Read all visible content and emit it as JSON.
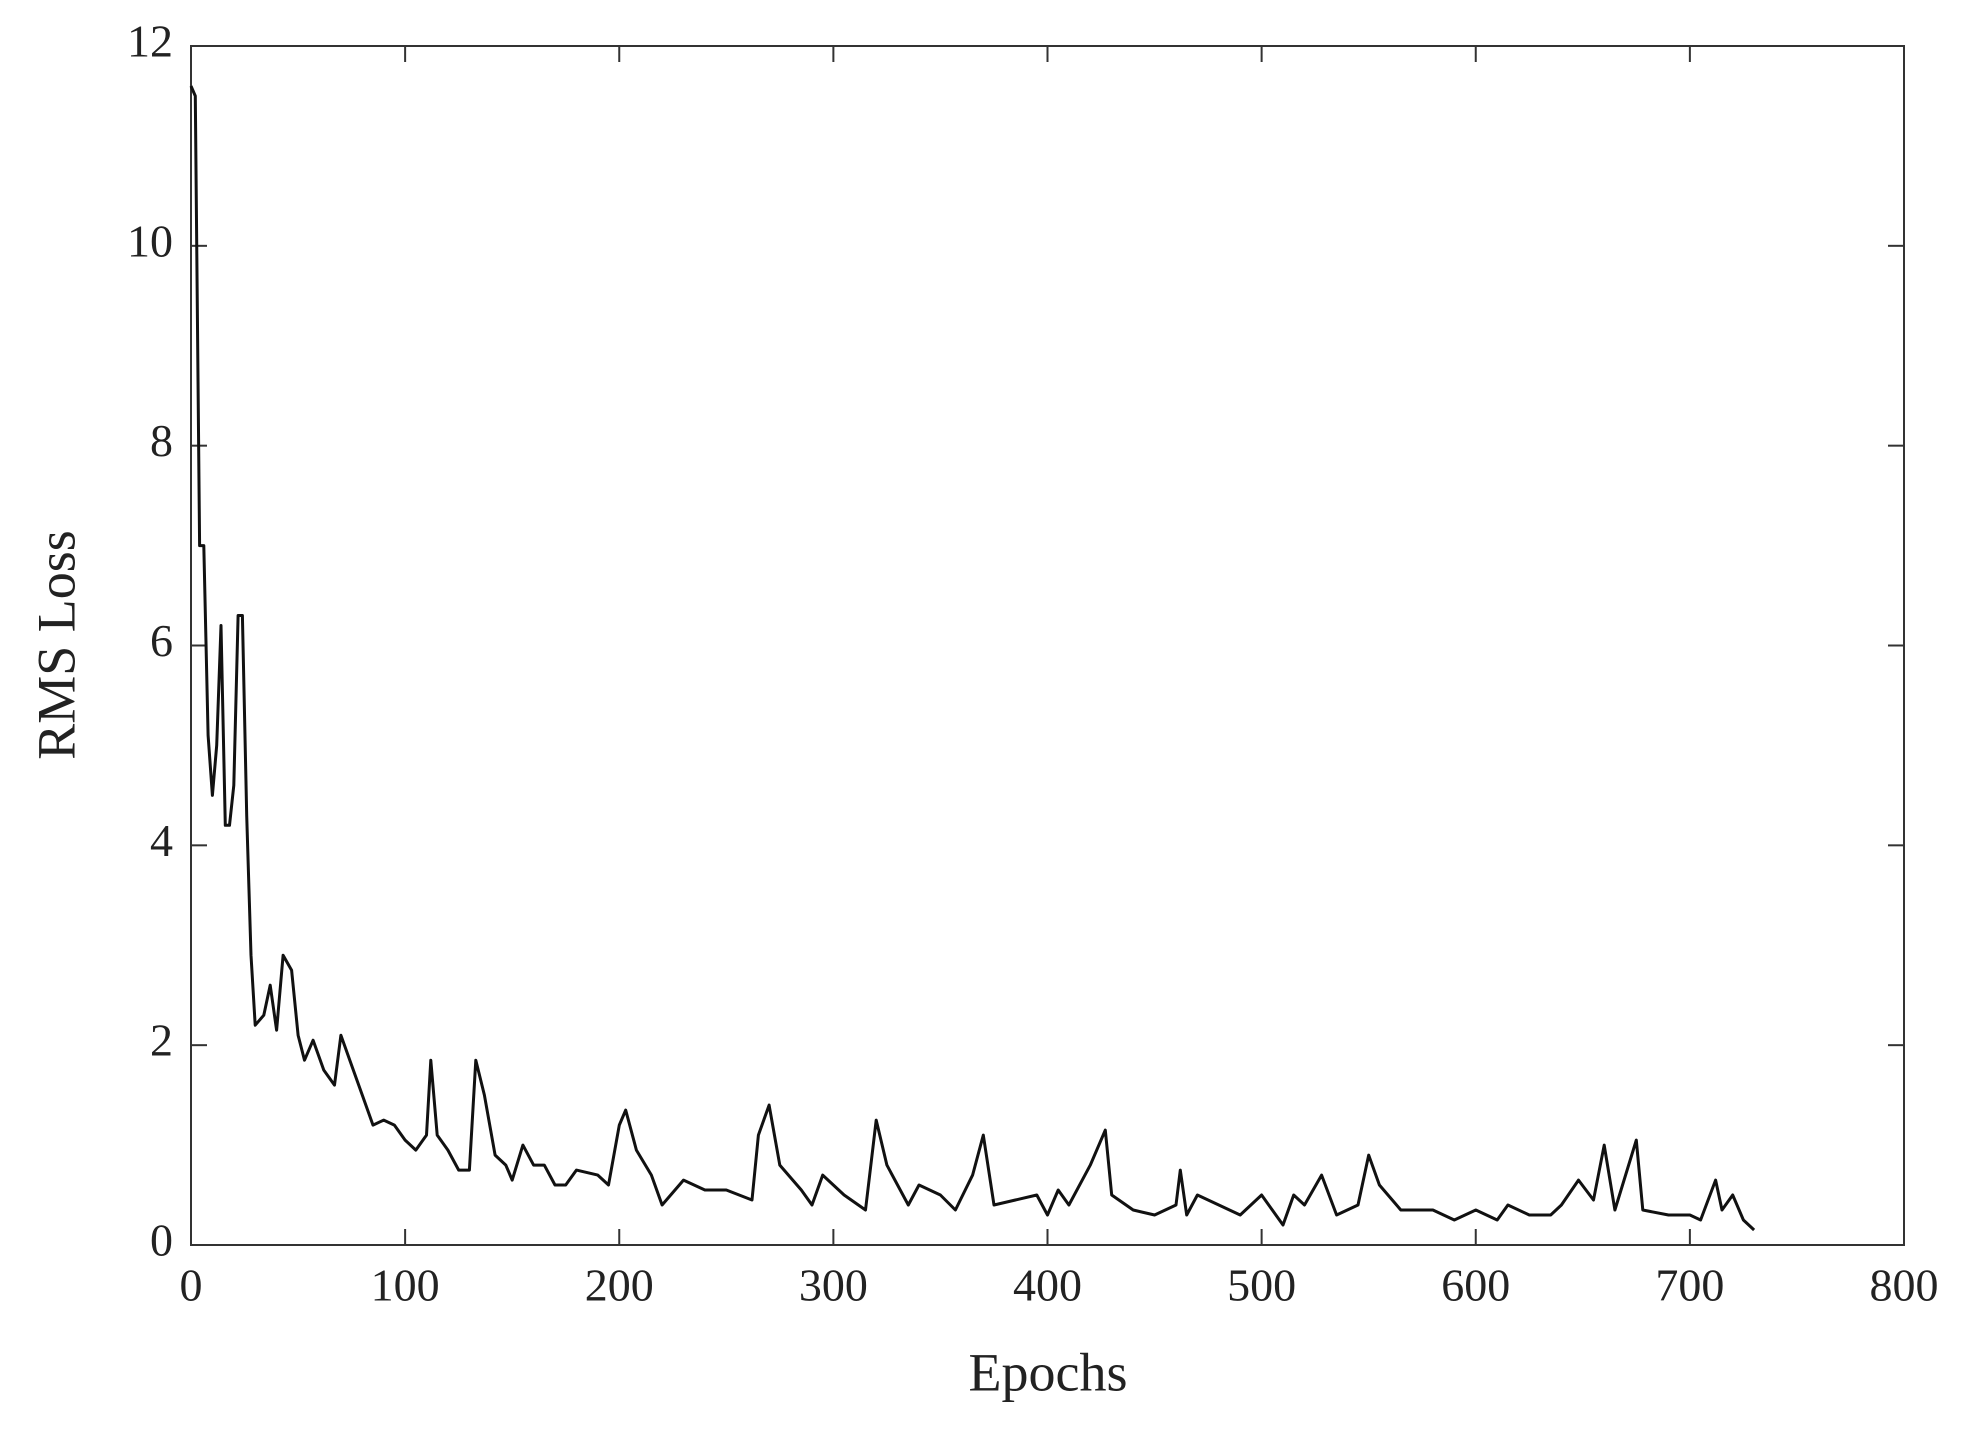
{
  "chart_data": {
    "type": "line",
    "x_label": "Epochs",
    "y_label": "RMS Loss",
    "color": "#111111",
    "x": [
      0,
      2,
      4,
      6,
      8,
      10,
      12,
      14,
      16,
      18,
      20,
      22,
      24,
      26,
      28,
      30,
      34,
      37,
      40,
      43,
      47,
      50,
      53,
      57,
      62,
      67,
      70,
      75,
      80,
      85,
      90,
      95,
      100,
      105,
      110,
      112,
      115,
      120,
      125,
      130,
      133,
      137,
      142,
      147,
      150,
      155,
      160,
      165,
      170,
      175,
      180,
      190,
      195,
      200,
      203,
      208,
      215,
      220,
      230,
      240,
      250,
      262,
      265,
      270,
      275,
      285,
      290,
      295,
      305,
      315,
      320,
      325,
      335,
      340,
      350,
      357,
      365,
      370,
      375,
      385,
      395,
      400,
      405,
      410,
      420,
      427,
      430,
      440,
      450,
      460,
      462,
      465,
      470,
      480,
      490,
      500,
      505,
      510,
      515,
      520,
      528,
      535,
      545,
      550,
      555,
      565,
      580,
      590,
      600,
      610,
      615,
      625,
      635,
      640,
      648,
      655,
      660,
      665,
      675,
      678,
      690,
      700,
      705,
      712,
      715,
      720,
      725,
      730
    ],
    "values": [
      11.6,
      11.5,
      7.0,
      7.0,
      5.1,
      4.5,
      5.0,
      6.2,
      4.2,
      4.2,
      4.6,
      6.3,
      6.3,
      4.3,
      2.9,
      2.2,
      2.3,
      2.6,
      2.15,
      2.9,
      2.75,
      2.1,
      1.85,
      2.05,
      1.75,
      1.6,
      2.1,
      1.8,
      1.5,
      1.2,
      1.25,
      1.2,
      1.05,
      0.95,
      1.1,
      1.85,
      1.1,
      0.95,
      0.75,
      0.75,
      1.85,
      1.5,
      0.9,
      0.8,
      0.65,
      1.0,
      0.8,
      0.8,
      0.6,
      0.6,
      0.75,
      0.7,
      0.6,
      1.2,
      1.35,
      0.95,
      0.7,
      0.4,
      0.65,
      0.55,
      0.55,
      0.45,
      1.1,
      1.4,
      0.8,
      0.55,
      0.4,
      0.7,
      0.5,
      0.35,
      1.25,
      0.8,
      0.4,
      0.6,
      0.5,
      0.35,
      0.7,
      1.1,
      0.4,
      0.45,
      0.5,
      0.3,
      0.55,
      0.4,
      0.8,
      1.15,
      0.5,
      0.35,
      0.3,
      0.4,
      0.75,
      0.3,
      0.5,
      0.4,
      0.3,
      0.5,
      0.35,
      0.2,
      0.5,
      0.4,
      0.7,
      0.3,
      0.4,
      0.9,
      0.6,
      0.35,
      0.35,
      0.25,
      0.35,
      0.25,
      0.4,
      0.3,
      0.3,
      0.4,
      0.65,
      0.45,
      1.0,
      0.35,
      1.05,
      0.35,
      0.3,
      0.3,
      0.25,
      0.65,
      0.35,
      0.5,
      0.25,
      0.15
    ],
    "xlim": [
      0,
      800
    ],
    "xticks": [
      0,
      100,
      200,
      300,
      400,
      500,
      600,
      700,
      800
    ],
    "ylim": [
      0,
      12
    ],
    "yticks": [
      0,
      2,
      4,
      6,
      8,
      10,
      12
    ]
  }
}
